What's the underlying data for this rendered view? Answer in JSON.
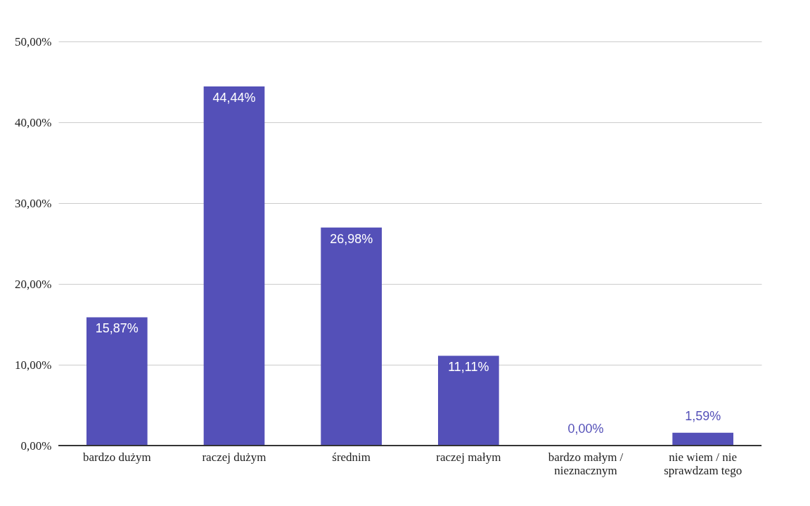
{
  "chart_data": {
    "type": "bar",
    "categories": [
      "bardzo dużym",
      "raczej dużym",
      "średnim",
      "raczej małym",
      "bardzo małym / nieznacznym",
      "nie wiem / nie sprawdzam tego"
    ],
    "values": [
      15.87,
      44.44,
      26.98,
      11.11,
      0,
      1.59
    ],
    "value_labels": [
      "15,87%",
      "44,44%",
      "26,98%",
      "11,11%",
      "0,00%",
      "1,59%"
    ],
    "color": "#5450b8",
    "ylim": [
      0,
      50
    ],
    "yticks": [
      {
        "value": 0,
        "label": "0,00%"
      },
      {
        "value": 10,
        "label": "10,00%"
      },
      {
        "value": 20,
        "label": "20,00%"
      },
      {
        "value": 30,
        "label": "30,00%"
      },
      {
        "value": 40,
        "label": "40,00%"
      },
      {
        "value": 50,
        "label": "50,00%"
      }
    ],
    "grid": "y"
  }
}
